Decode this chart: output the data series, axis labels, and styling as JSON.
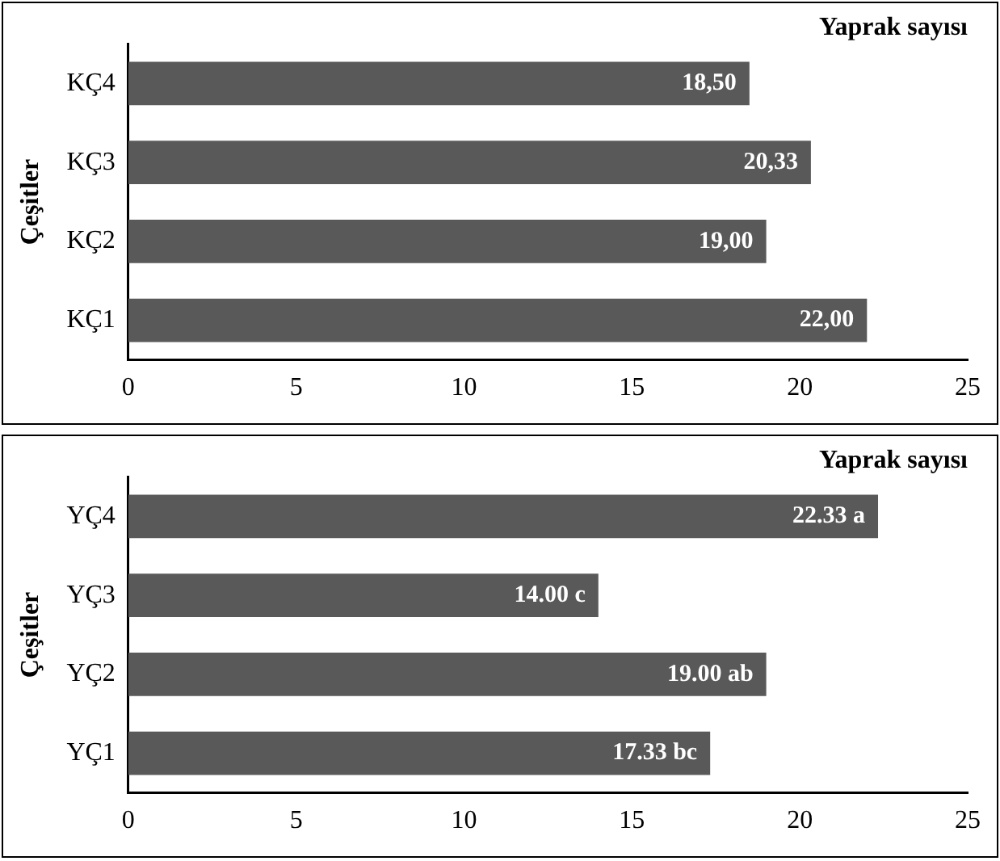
{
  "chart_data": [
    {
      "type": "bar",
      "orientation": "horizontal",
      "title": "Yaprak sayısı",
      "ylabel": "Çeşitler",
      "categories": [
        "KÇ4",
        "KÇ3",
        "KÇ2",
        "KÇ1"
      ],
      "values": [
        18.5,
        20.33,
        19.0,
        22.0
      ],
      "value_labels": [
        "18,50",
        "20,33",
        "19,00",
        "22,00"
      ],
      "color": "#595959",
      "xlim": [
        0,
        25
      ],
      "xticks": [
        0,
        5,
        10,
        15,
        20,
        25
      ],
      "grid": false,
      "legend": false
    },
    {
      "type": "bar",
      "orientation": "horizontal",
      "title": "Yaprak sayısı",
      "ylabel": "Çeşitler",
      "categories": [
        "YÇ4",
        "YÇ3",
        "YÇ2",
        "YÇ1"
      ],
      "values": [
        22.33,
        14.0,
        19.0,
        17.33
      ],
      "value_labels": [
        "22.33 a",
        "14.00 c",
        "19.00 ab",
        "17.33 bc"
      ],
      "color": "#595959",
      "xlim": [
        0,
        25
      ],
      "xticks": [
        0,
        5,
        10,
        15,
        20,
        25
      ],
      "grid": false,
      "legend": false
    }
  ]
}
